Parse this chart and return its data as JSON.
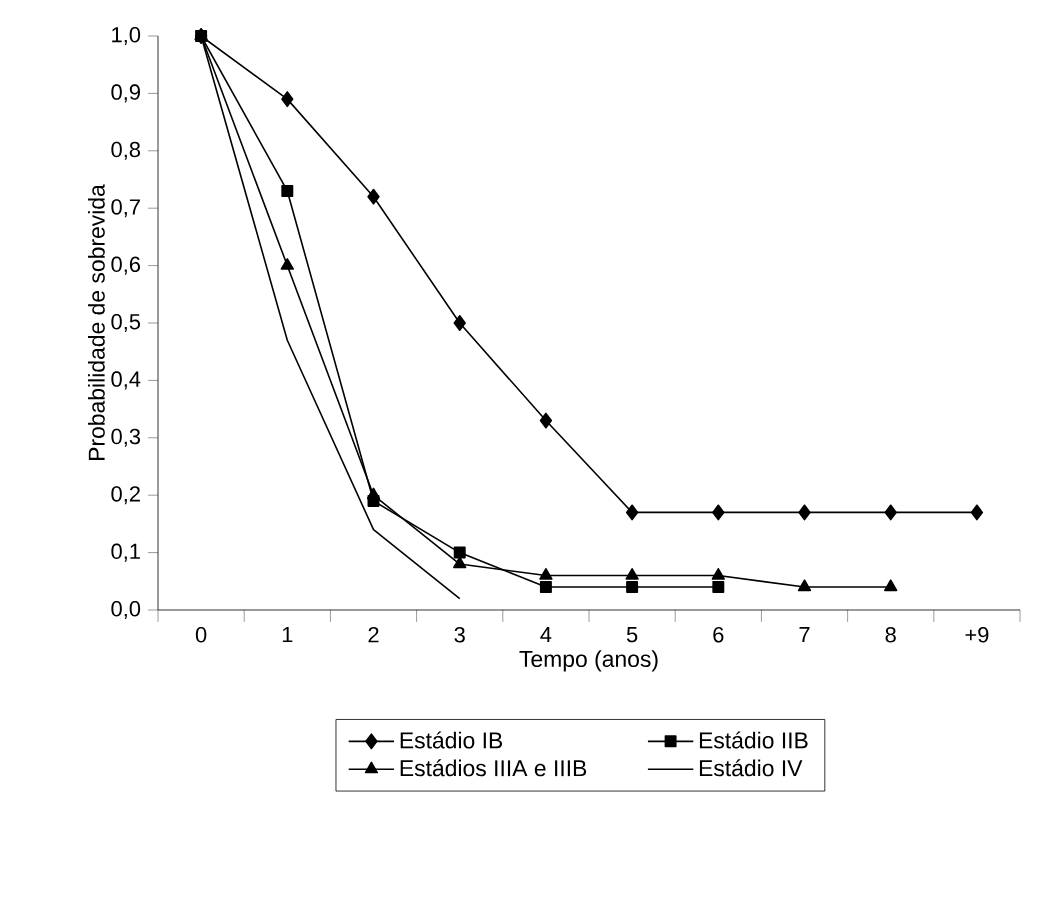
{
  "chart_data": {
    "type": "line",
    "xlabel": "Tempo (anos)",
    "ylabel": "Probabilidade de sobrevida",
    "categories": [
      "0",
      "1",
      "2",
      "3",
      "4",
      "5",
      "6",
      "7",
      "8",
      "+9"
    ],
    "ylim": [
      0,
      1.0
    ],
    "yticks": [
      {
        "value": 0,
        "label": "0,0"
      },
      {
        "value": 0.1,
        "label": "0,1"
      },
      {
        "value": 0.2,
        "label": "0,2"
      },
      {
        "value": 0.3,
        "label": "0,3"
      },
      {
        "value": 0.4,
        "label": "0,4"
      },
      {
        "value": 0.5,
        "label": "0,5"
      },
      {
        "value": 0.6,
        "label": "0,6"
      },
      {
        "value": 0.7,
        "label": "0,7"
      },
      {
        "value": 0.8,
        "label": "0,8"
      },
      {
        "value": 0.9,
        "label": "0,9"
      },
      {
        "value": 1.0,
        "label": "1,0"
      }
    ],
    "legend": "bottom",
    "grid": false,
    "line_style": "solid",
    "series": [
      {
        "name": "Estádio IB",
        "color": "#000000",
        "marker": "diamond",
        "values": [
          1.0,
          0.89,
          0.72,
          0.5,
          0.33,
          0.17,
          0.17,
          0.17,
          0.17,
          0.17
        ]
      },
      {
        "name": "Estádio IIB",
        "color": "#000000",
        "marker": "square",
        "values": [
          1.0,
          0.73,
          0.19,
          0.1,
          0.04,
          0.04,
          0.04,
          null,
          null,
          null
        ]
      },
      {
        "name": "Estádios IIIA e IIIB",
        "color": "#000000",
        "marker": "triangle",
        "values": [
          1.0,
          0.6,
          0.2,
          0.08,
          0.06,
          0.06,
          0.06,
          0.04,
          0.04,
          null
        ]
      },
      {
        "name": "Estádio IV",
        "color": "#000000",
        "marker": "none",
        "values": [
          1.0,
          0.47,
          0.14,
          0.02,
          null,
          null,
          null,
          null,
          null,
          null
        ]
      }
    ]
  }
}
